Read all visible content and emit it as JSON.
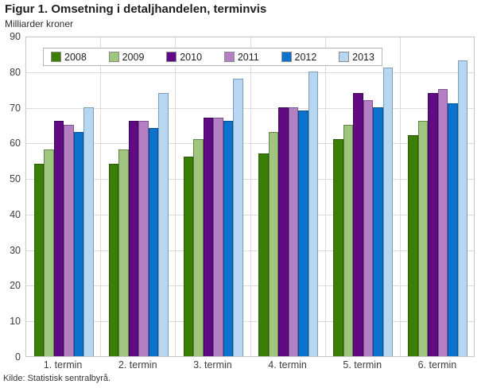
{
  "chart_data": {
    "type": "bar",
    "title": "Figur 1. Omsetning i detaljhandelen, terminvis",
    "ylabel": "Milliarder kroner",
    "categories": [
      "1. termin",
      "2. termin",
      "3. termin",
      "4. termin",
      "5. termin",
      "6. termin"
    ],
    "series": [
      {
        "name": "2008",
        "color": "#3b7f07",
        "border": "#2c5a09",
        "values": [
          54,
          54,
          56,
          57,
          61,
          62
        ]
      },
      {
        "name": "2009",
        "color": "#9fc57f",
        "border": "#64824c",
        "values": [
          58,
          58,
          61,
          63,
          65,
          66
        ]
      },
      {
        "name": "2010",
        "color": "#620a84",
        "border": "#3e0659",
        "values": [
          66,
          66,
          67,
          70,
          74,
          74
        ]
      },
      {
        "name": "2011",
        "color": "#b480c3",
        "border": "#7c5691",
        "values": [
          65,
          66,
          67,
          70,
          72,
          75
        ]
      },
      {
        "name": "2012",
        "color": "#0b72ce",
        "border": "#0a4f8e",
        "values": [
          63,
          64,
          66,
          69,
          70,
          71
        ]
      },
      {
        "name": "2013",
        "color": "#b6d6f2",
        "border": "#7e9db8",
        "values": [
          70,
          74,
          78,
          80,
          81,
          83
        ]
      }
    ],
    "ylim": [
      0,
      90
    ],
    "yticks": [
      0,
      10,
      20,
      30,
      40,
      50,
      60,
      70,
      80,
      90
    ],
    "grid": "on",
    "legend_position": "top-inside",
    "source": "Kilde: Statistisk sentralbyrå."
  }
}
